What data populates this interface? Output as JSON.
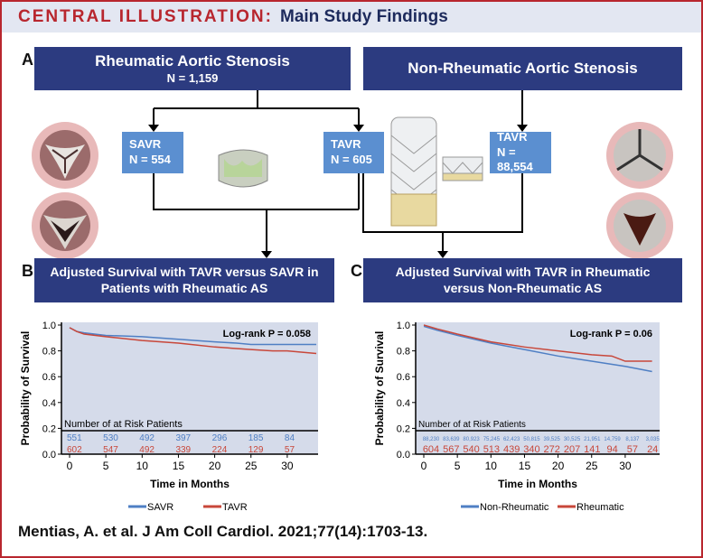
{
  "header": {
    "label": "CENTRAL ILLUSTRATION:",
    "title": "Main Study Findings"
  },
  "colors": {
    "navy": "#2c3b80",
    "box_blue": "#5b8fd0",
    "accent_red": "#b8262e",
    "series_blue": "#4f7fc4",
    "series_red": "#c8473a",
    "plot_bg": "#d5dbea"
  },
  "panel_a": {
    "letter": "A",
    "rheumatic": {
      "title": "Rheumatic Aortic Stenosis",
      "n": "N = 1,159"
    },
    "non_rheumatic": {
      "title": "Non-Rheumatic Aortic Stenosis"
    },
    "savr": {
      "name": "SAVR",
      "n": "N = 554"
    },
    "tavr_r": {
      "name": "TAVR",
      "n": "N = 605"
    },
    "tavr_nr": {
      "name": "TAVR",
      "n": "N = 88,554"
    }
  },
  "panel_b": {
    "letter": "B",
    "title_l1": "Adjusted Survival with TAVR versus SAVR in",
    "title_l2": "Patients with Rheumatic AS"
  },
  "panel_c": {
    "letter": "C",
    "title_l1": "Adjusted Survival with TAVR in Rheumatic",
    "title_l2": "versus Non-Rheumatic AS"
  },
  "citation": "Mentias, A. et al. J Am Coll Cardiol. 2021;77(14):1703-13.",
  "chart_data": [
    {
      "type": "line",
      "ylabel": "Probability of Survival",
      "xlabel": "Time in Months",
      "annotation": "Log-rank P = 0.058",
      "xlim": [
        0,
        34
      ],
      "ylim": [
        0,
        1
      ],
      "xticks": [
        "0",
        "5",
        "10",
        "15",
        "20",
        "25",
        "30"
      ],
      "yticks": [
        "0.0",
        "0.2",
        "0.4",
        "0.6",
        "0.8",
        "1.0"
      ],
      "legend_position": "bottom",
      "at_risk_title": "Number of at Risk Patients",
      "at_risk_times": [
        0,
        5,
        10,
        15,
        20,
        25,
        30
      ],
      "series": [
        {
          "name": "SAVR",
          "color": "#4f7fc4",
          "x": [
            0,
            1,
            2,
            5,
            10,
            15,
            20,
            23,
            25,
            30,
            34
          ],
          "y": [
            0.98,
            0.95,
            0.94,
            0.92,
            0.91,
            0.89,
            0.87,
            0.86,
            0.85,
            0.85,
            0.85
          ],
          "at_risk": [
            "551",
            "530",
            "492",
            "397",
            "296",
            "185",
            "84"
          ]
        },
        {
          "name": "TAVR",
          "color": "#c8473a",
          "x": [
            0,
            1,
            2,
            5,
            10,
            15,
            20,
            25,
            28,
            30,
            34
          ],
          "y": [
            0.98,
            0.95,
            0.93,
            0.91,
            0.88,
            0.86,
            0.83,
            0.81,
            0.8,
            0.8,
            0.78
          ],
          "at_risk": [
            "602",
            "547",
            "492",
            "339",
            "224",
            "129",
            "57"
          ]
        }
      ]
    },
    {
      "type": "line",
      "ylabel": "Probability of Survival",
      "xlabel": "Time in Months",
      "annotation": "Log-rank P = 0.06",
      "xlim": [
        0,
        34
      ],
      "ylim": [
        0,
        1
      ],
      "xticks": [
        "0",
        "5",
        "10",
        "15",
        "20",
        "25",
        "30"
      ],
      "yticks": [
        "0.0",
        "0.2",
        "0.4",
        "0.6",
        "0.8",
        "1.0"
      ],
      "legend_position": "bottom",
      "at_risk_title": "Number of at Risk Patients",
      "at_risk_times": [
        0,
        3,
        6,
        9,
        12,
        15,
        18,
        21,
        24,
        27,
        30,
        33
      ],
      "series": [
        {
          "name": "Non-Rheumatic",
          "color": "#4f7fc4",
          "x": [
            0,
            2,
            5,
            10,
            15,
            20,
            25,
            30,
            34
          ],
          "y": [
            0.99,
            0.96,
            0.92,
            0.86,
            0.81,
            0.76,
            0.72,
            0.68,
            0.64
          ],
          "at_risk": [
            "88,230",
            "83,639",
            "80,923",
            "75,245",
            "62,423",
            "50,815",
            "39,525",
            "30,525",
            "21,951",
            "14,759",
            "8,137",
            "3,035"
          ]
        },
        {
          "name": "Rheumatic",
          "color": "#c8473a",
          "x": [
            0,
            2,
            5,
            10,
            15,
            20,
            25,
            28,
            30,
            34
          ],
          "y": [
            1.0,
            0.97,
            0.93,
            0.87,
            0.83,
            0.8,
            0.77,
            0.76,
            0.72,
            0.72
          ],
          "at_risk": [
            "604",
            "567",
            "540",
            "513",
            "439",
            "340",
            "272",
            "207",
            "141",
            "94",
            "57",
            "24"
          ]
        }
      ]
    }
  ]
}
